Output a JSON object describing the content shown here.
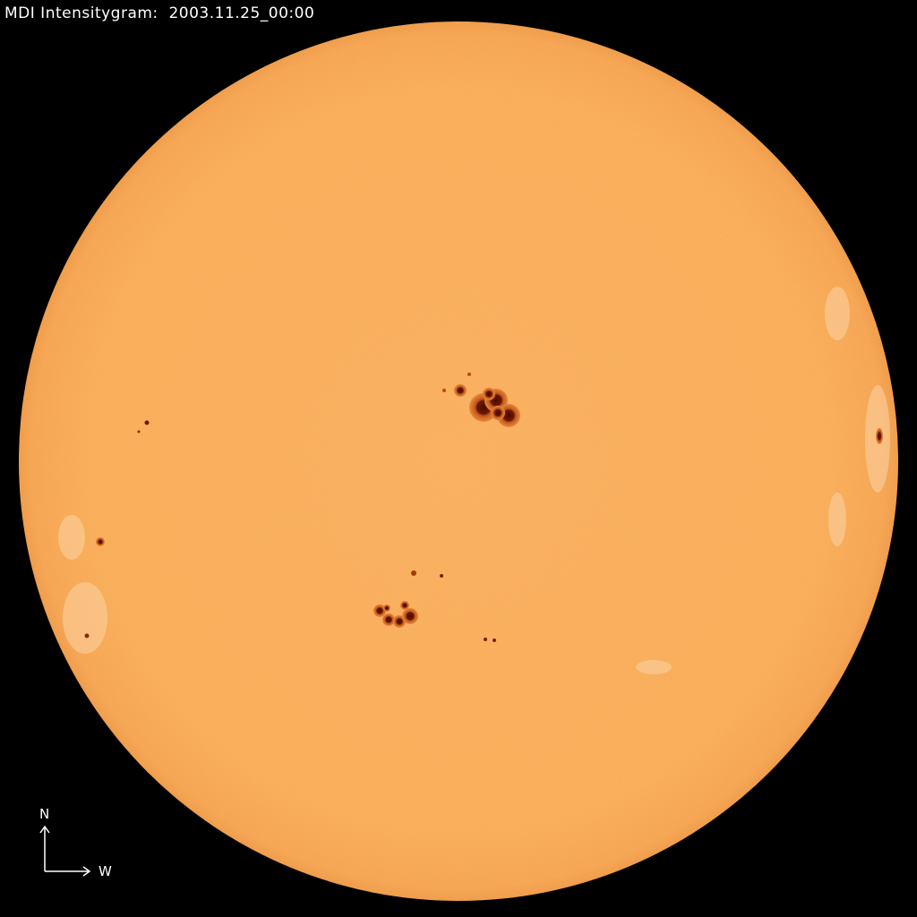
{
  "title": "MDI Intensitygram:  2003.11.25_00:00",
  "compass": {
    "north_label": "N",
    "west_label": "W"
  },
  "colors": {
    "background": "#000000",
    "photosphere": "#F9AA55",
    "umbra": "#4a0a00",
    "penumbra": "#c4561c",
    "facula": "#fbd3a6"
  },
  "sunspots": [
    {
      "group": "central-north"
    },
    {
      "group": "central-south"
    },
    {
      "group": "west-limb"
    },
    {
      "group": "east-limb"
    }
  ]
}
